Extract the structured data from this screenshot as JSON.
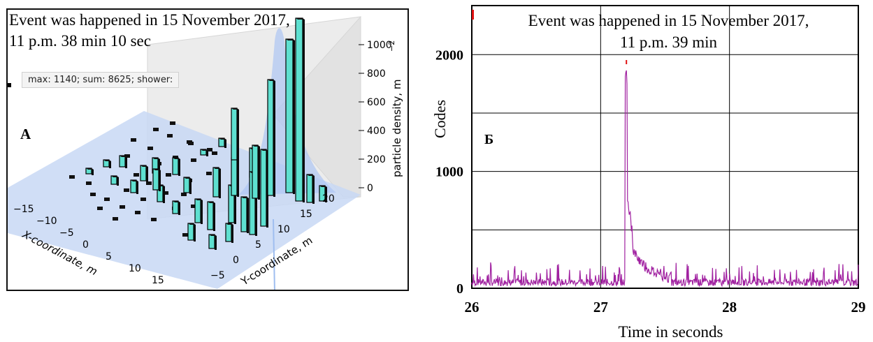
{
  "left_panel": {
    "title_line1": "Event was happened in 15 November 2017,",
    "title_line2": "11 p.m. 38 min 10 sec",
    "info_box": "max: 1140; sum: 8625; shower:",
    "panel_label": "А",
    "x_axis_label": "X-coordinate,  m",
    "y_axis_label": "Y-coordinate,  m",
    "z_axis_label": "particle  density,  m",
    "z_axis_exponent": "−2",
    "x_ticks": [
      "−15",
      "−10",
      "−5",
      "0",
      "5",
      "10",
      "15"
    ],
    "y_ticks": [
      "−5",
      "0",
      "5",
      "10",
      "15",
      "20"
    ],
    "z_ticks": [
      "0",
      "200",
      "400",
      "600",
      "800",
      "1000"
    ],
    "bar_color": "#5ee0d0",
    "surface_color": "#c8d8f5"
  },
  "right_panel": {
    "title_line1": "Event was happened in 15 November 2017,",
    "title_line2": "11 p.m. 39 min",
    "panel_label": "Б",
    "ylabel": "Codes",
    "xlabel": "Time in seconds",
    "x_ticks": [
      "26",
      "27",
      "28",
      "29"
    ],
    "y_ticks": [
      "0",
      "1000",
      "2000"
    ],
    "line_color": "#a020a0"
  },
  "chart_data": [
    {
      "type": "bar",
      "title": "Event was happened in 15 November 2017, 11 p.m. 38 min 10 sec",
      "xlabel": "X-coordinate,  m",
      "ylabel": "Y-coordinate,  m",
      "zlabel": "particle  density,  m−2",
      "zlim": [
        0,
        1000
      ],
      "annotation": "max: 1140; sum: 8625; shower:",
      "note": "3D bar chart of particle density over detector grid"
    },
    {
      "type": "line",
      "title": "Event was happened in 15 November 2017, 11 p.m. 39 min",
      "xlabel": "Time in seconds",
      "ylabel": "Codes",
      "xlim": [
        26,
        29
      ],
      "ylim": [
        0,
        2000
      ],
      "baseline_range": [
        20,
        180
      ],
      "peak": {
        "x": 27.2,
        "y": 1900
      },
      "series": [
        {
          "x": [
            26.0,
            26.5,
            27.0,
            27.15,
            27.18,
            27.2,
            27.22,
            27.25,
            27.3,
            27.4,
            27.6,
            28.0,
            28.5,
            29.0
          ],
          "values": [
            60,
            70,
            60,
            90,
            1900,
            780,
            420,
            260,
            180,
            130,
            90,
            80,
            90,
            80
          ]
        }
      ]
    }
  ]
}
